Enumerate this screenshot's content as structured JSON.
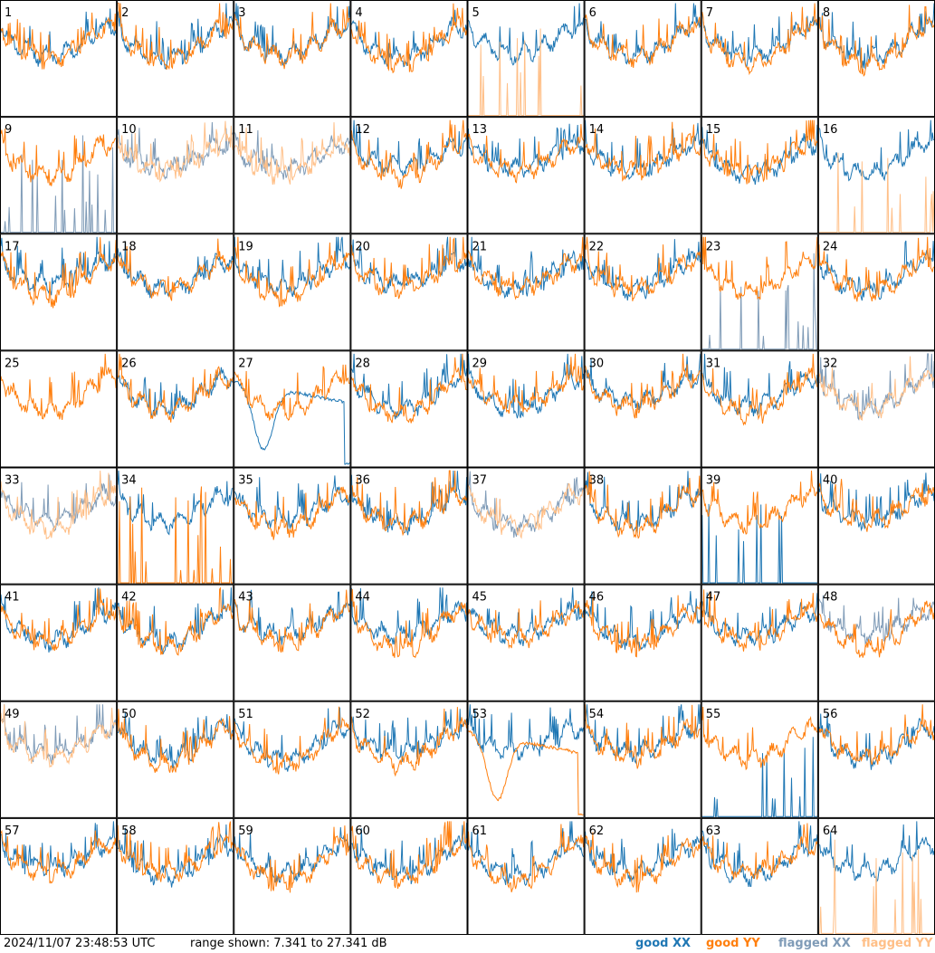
{
  "timestamp": "2024/11/07 23:48:53 UTC",
  "range_text": "range shown: 7.341 to 27.341 dB",
  "legend": {
    "good_xx": "good XX",
    "good_yy": "good YY",
    "flagged_xx": "flagged XX",
    "flagged_yy": "flagged YY"
  },
  "colors": {
    "good_xx": "#1f77b4",
    "good_yy": "#ff7f0e",
    "flagged_xx": "#7f9bb7",
    "flagged_yy": "#ffbf87",
    "border": "#000000"
  },
  "chart_data": {
    "type": "line",
    "rows": 8,
    "cols": 8,
    "ylim_db": [
      7.341,
      27.341
    ],
    "series_names": [
      "good XX",
      "good YY",
      "flagged XX",
      "flagged YY"
    ],
    "panels": [
      {
        "id": "1"
      },
      {
        "id": "2"
      },
      {
        "id": "3"
      },
      {
        "id": "4"
      },
      {
        "id": "5",
        "yy_flagged": true,
        "yy_spikes": true
      },
      {
        "id": "6"
      },
      {
        "id": "7"
      },
      {
        "id": "8"
      },
      {
        "id": "9",
        "xx_flagged": true,
        "xx_spikes": true
      },
      {
        "id": "10",
        "xx_flagged": true,
        "yy_flagged": true
      },
      {
        "id": "11",
        "xx_flagged": true,
        "yy_flagged": true
      },
      {
        "id": "12"
      },
      {
        "id": "13"
      },
      {
        "id": "14"
      },
      {
        "id": "15"
      },
      {
        "id": "16",
        "yy_flagged": true,
        "yy_spikes": true
      },
      {
        "id": "17"
      },
      {
        "id": "18"
      },
      {
        "id": "19"
      },
      {
        "id": "20"
      },
      {
        "id": "21"
      },
      {
        "id": "22"
      },
      {
        "id": "23",
        "xx_flagged": true,
        "xx_spikes": true
      },
      {
        "id": "24"
      },
      {
        "id": "25",
        "xx_hidden": true
      },
      {
        "id": "26"
      },
      {
        "id": "27",
        "xx_arc": true
      },
      {
        "id": "28"
      },
      {
        "id": "29"
      },
      {
        "id": "30"
      },
      {
        "id": "31"
      },
      {
        "id": "32",
        "xx_flagged": true,
        "yy_flagged": true
      },
      {
        "id": "33",
        "xx_flagged": true,
        "yy_flagged": true
      },
      {
        "id": "34",
        "yy_spikes": true
      },
      {
        "id": "35"
      },
      {
        "id": "36"
      },
      {
        "id": "37",
        "xx_flagged": true,
        "yy_flagged": true
      },
      {
        "id": "38"
      },
      {
        "id": "39",
        "xx_spikes": true
      },
      {
        "id": "40"
      },
      {
        "id": "41"
      },
      {
        "id": "42"
      },
      {
        "id": "43"
      },
      {
        "id": "44"
      },
      {
        "id": "45"
      },
      {
        "id": "46"
      },
      {
        "id": "47"
      },
      {
        "id": "48",
        "xx_flagged": true
      },
      {
        "id": "49",
        "xx_flagged": true,
        "yy_flagged": true
      },
      {
        "id": "50"
      },
      {
        "id": "51"
      },
      {
        "id": "52"
      },
      {
        "id": "53",
        "yy_arc": true
      },
      {
        "id": "54"
      },
      {
        "id": "55",
        "xx_spikes": true
      },
      {
        "id": "56"
      },
      {
        "id": "57"
      },
      {
        "id": "58"
      },
      {
        "id": "59"
      },
      {
        "id": "60"
      },
      {
        "id": "61"
      },
      {
        "id": "62"
      },
      {
        "id": "63"
      },
      {
        "id": "64",
        "yy_flagged": true,
        "yy_spikes": true
      }
    ]
  }
}
